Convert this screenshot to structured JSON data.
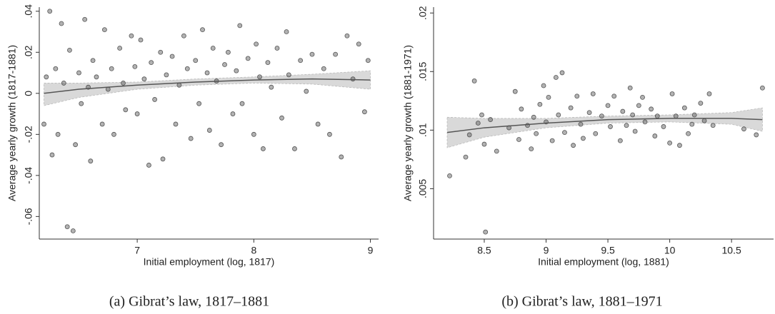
{
  "chart_data": [
    {
      "type": "scatter",
      "caption": "(a) Gibrat’s law, 1817–1881",
      "x_label": "Initial employment (log, 1817)",
      "y_label": "Average yearly growth (1817-1881)",
      "xlim": [
        6.16,
        9.07
      ],
      "ylim": [
        -0.071,
        0.042
      ],
      "xticks": [
        7,
        8,
        9
      ],
      "yticks": [
        {
          "value": -0.06,
          "label": "-.06"
        },
        {
          "value": -0.04,
          "label": "-.04"
        },
        {
          "value": -0.02,
          "label": "-.02"
        },
        0,
        {
          "value": 0.02,
          "label": ".02"
        },
        {
          "value": 0.04,
          "label": ".04"
        }
      ],
      "color": "#555555",
      "fit_color": "#555555",
      "band_color": "#d9d9d9",
      "x": [
        6.2,
        6.22,
        6.25,
        6.27,
        6.3,
        6.32,
        6.35,
        6.37,
        6.4,
        6.42,
        6.45,
        6.47,
        6.5,
        6.52,
        6.55,
        6.58,
        6.6,
        6.62,
        6.65,
        6.7,
        6.72,
        6.75,
        6.78,
        6.8,
        6.85,
        6.88,
        6.9,
        6.95,
        6.98,
        7.0,
        7.03,
        7.06,
        7.1,
        7.12,
        7.15,
        7.2,
        7.22,
        7.25,
        7.3,
        7.33,
        7.36,
        7.4,
        7.43,
        7.46,
        7.5,
        7.53,
        7.56,
        7.6,
        7.62,
        7.65,
        7.68,
        7.72,
        7.75,
        7.78,
        7.82,
        7.85,
        7.88,
        7.9,
        7.95,
        8.0,
        8.02,
        8.05,
        8.08,
        8.12,
        8.15,
        8.2,
        8.24,
        8.28,
        8.3,
        8.35,
        8.4,
        8.45,
        8.5,
        8.55,
        8.6,
        8.65,
        8.7,
        8.75,
        8.8,
        8.85,
        8.9,
        8.95,
        8.98
      ],
      "values": [
        -0.015,
        0.008,
        0.04,
        -0.03,
        0.012,
        -0.02,
        0.034,
        0.005,
        -0.065,
        0.021,
        -0.067,
        -0.025,
        0.01,
        -0.005,
        0.036,
        0.003,
        -0.033,
        0.016,
        0.008,
        -0.015,
        0.031,
        0.002,
        0.012,
        -0.02,
        0.022,
        0.005,
        -0.008,
        0.028,
        0.013,
        -0.01,
        0.026,
        0.007,
        -0.035,
        0.015,
        -0.003,
        0.02,
        -0.032,
        0.009,
        0.018,
        -0.015,
        0.004,
        0.028,
        0.012,
        -0.022,
        0.016,
        -0.005,
        0.031,
        0.01,
        -0.018,
        0.022,
        0.006,
        -0.025,
        0.014,
        0.02,
        -0.01,
        0.011,
        0.033,
        -0.005,
        0.017,
        -0.02,
        0.024,
        0.008,
        -0.027,
        0.015,
        0.003,
        0.022,
        -0.012,
        0.03,
        0.009,
        -0.027,
        0.016,
        0.001,
        0.019,
        -0.015,
        0.012,
        -0.02,
        0.019,
        -0.031,
        0.028,
        0.007,
        0.024,
        -0.009,
        0.016
      ],
      "fit": {
        "x": [
          6.2,
          6.5,
          7,
          7.5,
          8,
          8.5,
          9
        ],
        "values": [
          0,
          0.002,
          0.004,
          0.0055,
          0.0065,
          0.007,
          0.0065
        ],
        "lower": [
          -0.006,
          -0.002,
          0.002,
          0.004,
          0.005,
          0.0045,
          0.002
        ],
        "upper": [
          0.005,
          0.005,
          0.0055,
          0.007,
          0.008,
          0.0093,
          0.011
        ]
      }
    },
    {
      "type": "scatter",
      "caption": "(b) Gibrat’s law, 1881–1971",
      "x_label": "Initial employment (log, 1881)",
      "y_label": "Average yearly growth (1881-1971)",
      "xlim": [
        8.09,
        10.84
      ],
      "ylim": [
        0.0007,
        0.0205
      ],
      "xticks": [
        8.5,
        9,
        9.5,
        10,
        10.5
      ],
      "yticks": [
        {
          "value": 0.005,
          "label": ".005"
        },
        {
          "value": 0.01,
          "label": ".01"
        },
        {
          "value": 0.015,
          "label": ".015"
        },
        {
          "value": 0.02,
          "label": ".02"
        }
      ],
      "color": "#555555",
      "fit_color": "#555555",
      "band_color": "#d9d9d9",
      "x": [
        8.22,
        8.35,
        8.38,
        8.42,
        8.45,
        8.48,
        8.5,
        8.51,
        8.55,
        8.6,
        8.7,
        8.75,
        8.78,
        8.8,
        8.85,
        8.88,
        8.9,
        8.92,
        8.95,
        8.98,
        9.0,
        9.02,
        9.05,
        9.08,
        9.1,
        9.13,
        9.15,
        9.2,
        9.22,
        9.25,
        9.28,
        9.3,
        9.35,
        9.38,
        9.4,
        9.45,
        9.5,
        9.52,
        9.55,
        9.6,
        9.62,
        9.65,
        9.68,
        9.7,
        9.72,
        9.75,
        9.78,
        9.8,
        9.85,
        9.88,
        9.9,
        9.95,
        10.0,
        10.02,
        10.05,
        10.08,
        10.12,
        10.15,
        10.18,
        10.2,
        10.25,
        10.28,
        10.32,
        10.35,
        10.6,
        10.7,
        10.75
      ],
      "values": [
        0.0061,
        0.0077,
        0.0096,
        0.0142,
        0.0106,
        0.0113,
        0.0088,
        0.0013,
        0.0109,
        0.0082,
        0.0102,
        0.0133,
        0.0092,
        0.0118,
        0.0104,
        0.0084,
        0.0111,
        0.0097,
        0.0122,
        0.0138,
        0.0107,
        0.0128,
        0.0091,
        0.0145,
        0.0113,
        0.0149,
        0.0098,
        0.0119,
        0.0087,
        0.0129,
        0.0105,
        0.0093,
        0.0115,
        0.0131,
        0.0097,
        0.0112,
        0.0121,
        0.0103,
        0.0129,
        0.0091,
        0.0116,
        0.0104,
        0.0136,
        0.0113,
        0.0099,
        0.0121,
        0.0128,
        0.0107,
        0.0118,
        0.0095,
        0.0112,
        0.0103,
        0.0089,
        0.0131,
        0.0112,
        0.0087,
        0.0119,
        0.0097,
        0.0105,
        0.0113,
        0.0123,
        0.0108,
        0.0131,
        0.0104,
        0.0101,
        0.0096,
        0.0136
      ],
      "fit": {
        "x": [
          8.2,
          8.5,
          9,
          9.5,
          10,
          10.5,
          10.75
        ],
        "values": [
          0.0098,
          0.0102,
          0.0106,
          0.0109,
          0.011,
          0.011,
          0.0109
        ],
        "lower": [
          0.0085,
          0.0094,
          0.0102,
          0.0106,
          0.0107,
          0.0105,
          0.0099
        ],
        "upper": [
          0.0111,
          0.011,
          0.011,
          0.0112,
          0.0113,
          0.0115,
          0.0119
        ]
      }
    }
  ]
}
